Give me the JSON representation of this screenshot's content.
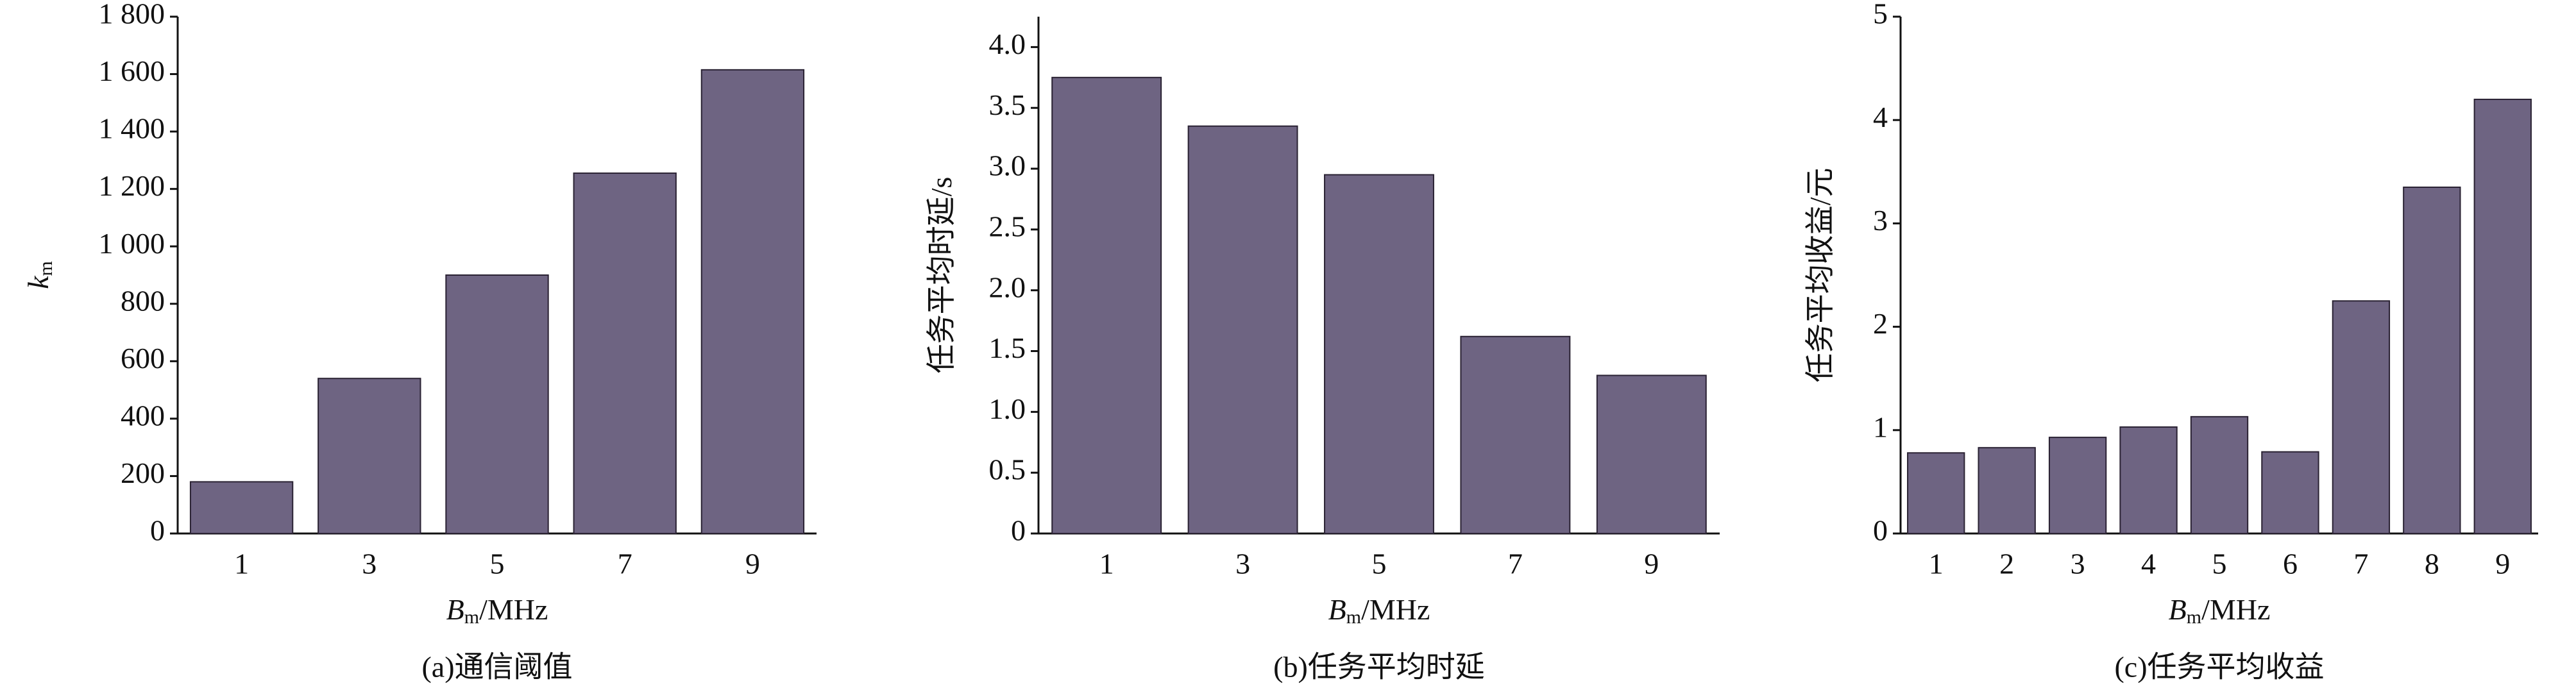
{
  "chart_data": [
    {
      "type": "bar",
      "caption": "(a)通信阈值",
      "ylabel": "k",
      "ylabel_sub": "m",
      "xlabel": "B",
      "xlabel_sub": "m",
      "xlabel_unit": "/MHz",
      "categories": [
        "1",
        "3",
        "5",
        "7",
        "9"
      ],
      "values": [
        180,
        540,
        900,
        1255,
        1615
      ],
      "color": "#6e6482",
      "ylim": [
        0,
        1800
      ],
      "yticks": [
        0,
        200,
        400,
        600,
        800,
        {
          "value": 1000,
          "label": "1 000"
        },
        {
          "value": 1200,
          "label": "1 200"
        },
        {
          "value": 1400,
          "label": "1 400"
        },
        {
          "value": 1600,
          "label": "1 600"
        },
        {
          "value": 1800,
          "label": "1 800"
        }
      ]
    },
    {
      "type": "bar",
      "caption": "(b)任务平均时延",
      "ylabel": "任务平均时延/s",
      "xlabel": "B",
      "xlabel_sub": "m",
      "xlabel_unit": "/MHz",
      "categories": [
        "1",
        "3",
        "5",
        "7",
        "9"
      ],
      "values": [
        3.75,
        3.35,
        2.95,
        1.62,
        1.3
      ],
      "color": "#6e6482",
      "ylim": [
        0,
        4.25
      ],
      "yticks": [
        0,
        0.5,
        {
          "value": 1,
          "label": "1.0"
        },
        1.5,
        {
          "value": 2,
          "label": "2.0"
        },
        2.5,
        {
          "value": 3,
          "label": "3.0"
        },
        3.5,
        {
          "value": 4,
          "label": "4.0"
        }
      ]
    },
    {
      "type": "bar",
      "caption": "(c)任务平均收益",
      "ylabel": "任务平均收益/元",
      "xlabel": "B",
      "xlabel_sub": "m",
      "xlabel_unit": "/MHz",
      "categories": [
        "1",
        "2",
        "3",
        "4",
        "5",
        "6",
        "7",
        "8",
        "9"
      ],
      "values": [
        0.78,
        0.83,
        0.93,
        1.03,
        1.13,
        0.79,
        2.25,
        3.35,
        4.2
      ],
      "color": "#6e6482",
      "ylim": [
        0,
        5
      ],
      "yticks": [
        0,
        1,
        2,
        3,
        4,
        5
      ]
    }
  ]
}
